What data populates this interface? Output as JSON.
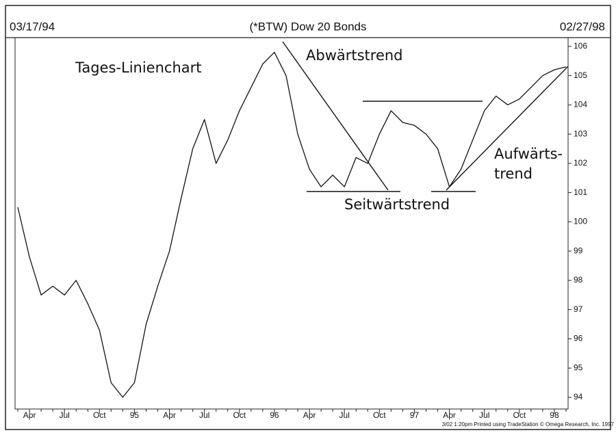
{
  "chart_data": {
    "type": "line",
    "title": "(*BTW) Dow 20 Bonds",
    "start_date": "03/17/94",
    "end_date": "02/27/98",
    "annotations": [
      "Tages-Linienchart",
      "Abwärtstrend",
      "Seitwärtstrend",
      "Aufwärts-",
      "trend"
    ],
    "footer": "3/02  1:20pm Printed using TradeStation © Omega Research, Inc. 1997",
    "categories": [
      null,
      "Apr",
      null,
      null,
      "Jul",
      null,
      null,
      "Oct",
      null,
      null,
      "95",
      null,
      null,
      "Apr",
      null,
      null,
      "Jul",
      null,
      null,
      "Oct",
      null,
      null,
      "96",
      null,
      null,
      "Apr",
      null,
      null,
      "Jul",
      null,
      null,
      "Oct",
      null,
      null,
      "97",
      null,
      null,
      "Apr",
      null,
      null,
      "Jul",
      null,
      null,
      "Oct",
      null,
      null,
      "98",
      null
    ],
    "series": [
      {
        "name": "Dow 20 Bonds",
        "color": "#111111",
        "values": [
          100.5,
          98.8,
          97.5,
          97.8,
          97.5,
          98.0,
          97.2,
          96.3,
          94.5,
          94.0,
          94.5,
          96.5,
          97.8,
          99.0,
          100.8,
          102.5,
          103.5,
          102.0,
          102.8,
          103.8,
          104.6,
          105.4,
          105.8,
          105.0,
          103.0,
          101.8,
          101.2,
          101.6,
          101.2,
          102.2,
          102.0,
          103.0,
          103.8,
          103.4,
          103.3,
          103.0,
          102.5,
          101.2,
          101.8,
          102.8,
          103.8,
          104.3,
          104.0,
          104.2,
          104.6,
          105.0,
          105.2,
          105.3
        ]
      }
    ],
    "ylim": [
      93.6,
      106.3
    ],
    "yticks": [
      94,
      95,
      96,
      97,
      98,
      99,
      100,
      101,
      102,
      103,
      104,
      105,
      106
    ],
    "grid": false
  }
}
